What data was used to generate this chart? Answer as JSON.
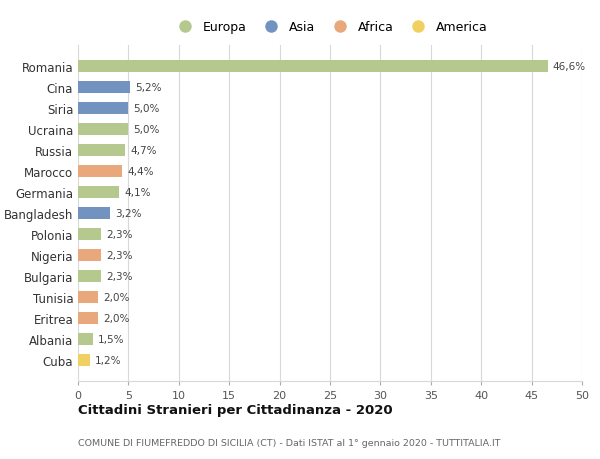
{
  "countries": [
    "Romania",
    "Cina",
    "Siria",
    "Ucraina",
    "Russia",
    "Marocco",
    "Germania",
    "Bangladesh",
    "Polonia",
    "Nigeria",
    "Bulgaria",
    "Tunisia",
    "Eritrea",
    "Albania",
    "Cuba"
  ],
  "values": [
    46.6,
    5.2,
    5.0,
    5.0,
    4.7,
    4.4,
    4.1,
    3.2,
    2.3,
    2.3,
    2.3,
    2.0,
    2.0,
    1.5,
    1.2
  ],
  "labels": [
    "46,6%",
    "5,2%",
    "5,0%",
    "5,0%",
    "4,7%",
    "4,4%",
    "4,1%",
    "3,2%",
    "2,3%",
    "2,3%",
    "2,3%",
    "2,0%",
    "2,0%",
    "1,5%",
    "1,2%"
  ],
  "continents": [
    "Europa",
    "Asia",
    "Asia",
    "Europa",
    "Europa",
    "Africa",
    "Europa",
    "Asia",
    "Europa",
    "Africa",
    "Europa",
    "Africa",
    "Africa",
    "Europa",
    "America"
  ],
  "colors": {
    "Europa": "#b5c98e",
    "Asia": "#7292c0",
    "Africa": "#e8a87c",
    "America": "#f0d060"
  },
  "xlim": [
    0,
    50
  ],
  "xticks": [
    0,
    5,
    10,
    15,
    20,
    25,
    30,
    35,
    40,
    45,
    50
  ],
  "title": "Cittadini Stranieri per Cittadinanza - 2020",
  "subtitle": "COMUNE DI FIUMEFREDDO DI SICILIA (CT) - Dati ISTAT al 1° gennaio 2020 - TUTTITALIA.IT",
  "background_color": "#ffffff",
  "grid_color": "#d8d8d8",
  "bar_height": 0.55
}
